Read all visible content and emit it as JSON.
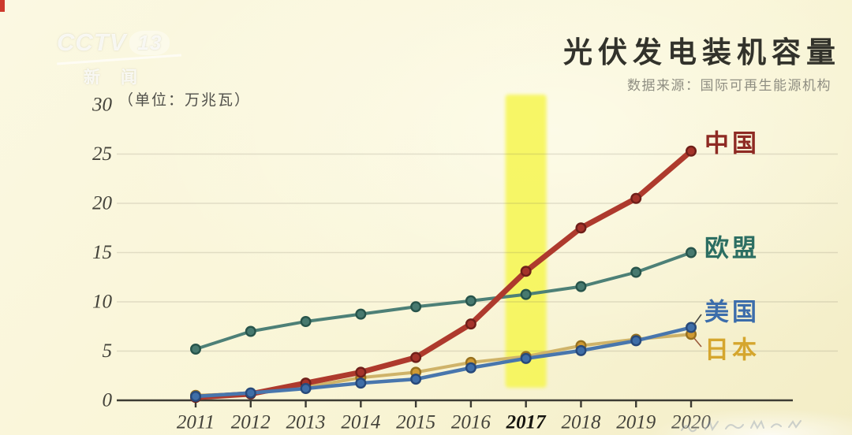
{
  "page": {
    "background_color": "#f9f5d6",
    "corner_mark_color": "#cd3a2c"
  },
  "logo": {
    "line1": "CCTV",
    "channel": "13",
    "line2": "新闻"
  },
  "header": {
    "title": "光伏发电装机容量",
    "source": "数据来源：国际可再生能源机构"
  },
  "chart_data": {
    "type": "line",
    "title": "光伏发电装机容量",
    "subtitle": "数据来源：国际可再生能源机构",
    "unit_label": "（单位：万兆瓦）",
    "xlabel": "",
    "ylabel": "万兆瓦",
    "x": [
      "2011",
      "2012",
      "2013",
      "2014",
      "2015",
      "2016",
      "2017",
      "2018",
      "2019",
      "2020"
    ],
    "y_ticks": [
      0,
      5,
      10,
      15,
      20,
      25,
      30
    ],
    "ylim": [
      0,
      30
    ],
    "grid": "faint-horizontal",
    "legend_position": "right-of-line-ends",
    "highlight_x": "2017",
    "highlight_color": "#f6f64b",
    "series": [
      {
        "key": "japan",
        "name": "日本",
        "values": [
          0.5,
          0.7,
          1.35,
          2.3,
          2.85,
          3.85,
          4.45,
          5.55,
          6.2,
          6.7
        ],
        "line_color": "#cfb369",
        "line_width": 4,
        "marker_fill": "#cf9a33",
        "marker_stroke": "#97711f",
        "label_color": "#d5a62e"
      },
      {
        "key": "eu",
        "name": "欧盟",
        "values": [
          5.2,
          7.0,
          8.0,
          8.75,
          9.5,
          10.1,
          10.75,
          11.55,
          13.0,
          15.0
        ],
        "line_color": "#4d8077",
        "line_width": 4,
        "marker_fill": "#47796f",
        "marker_stroke": "#27544b",
        "label_color": "#2c6e62"
      },
      {
        "key": "china",
        "name": "中国",
        "values": [
          0.3,
          0.65,
          1.75,
          2.85,
          4.35,
          7.75,
          13.1,
          17.5,
          20.5,
          25.3
        ],
        "line_color": "#ae3a2d",
        "line_width": 7,
        "marker_fill": "#a4332a",
        "marker_stroke": "#6f1f19",
        "label_color": "#8e2a23"
      },
      {
        "key": "us",
        "name": "美国",
        "values": [
          0.4,
          0.75,
          1.2,
          1.75,
          2.15,
          3.3,
          4.25,
          5.05,
          6.05,
          7.4
        ],
        "line_color": "#4876ad",
        "line_width": 4.5,
        "marker_fill": "#3f6ea7",
        "marker_stroke": "#27497a",
        "label_color": "#3c6dab"
      }
    ]
  }
}
